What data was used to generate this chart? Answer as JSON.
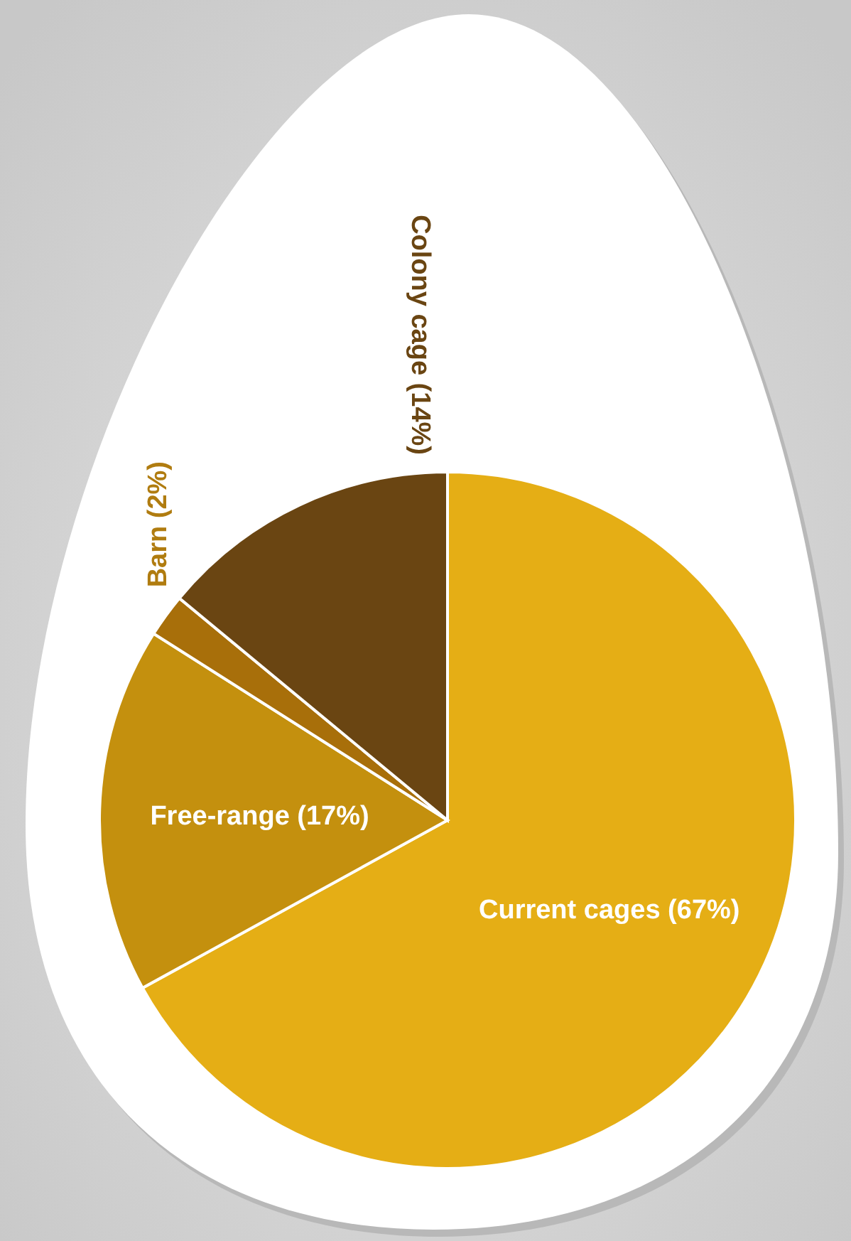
{
  "chart_data": {
    "type": "pie",
    "categories": [
      "Current cages",
      "Free-range",
      "Barn",
      "Colony cage"
    ],
    "values": [
      67,
      17,
      2,
      14
    ],
    "value_labels": [
      "(67%)",
      "(17%)",
      "(2%)",
      "(14%)"
    ],
    "colors": [
      "#e5ae15",
      "#c4900e",
      "#a86f0a",
      "#6a4512"
    ]
  }
}
